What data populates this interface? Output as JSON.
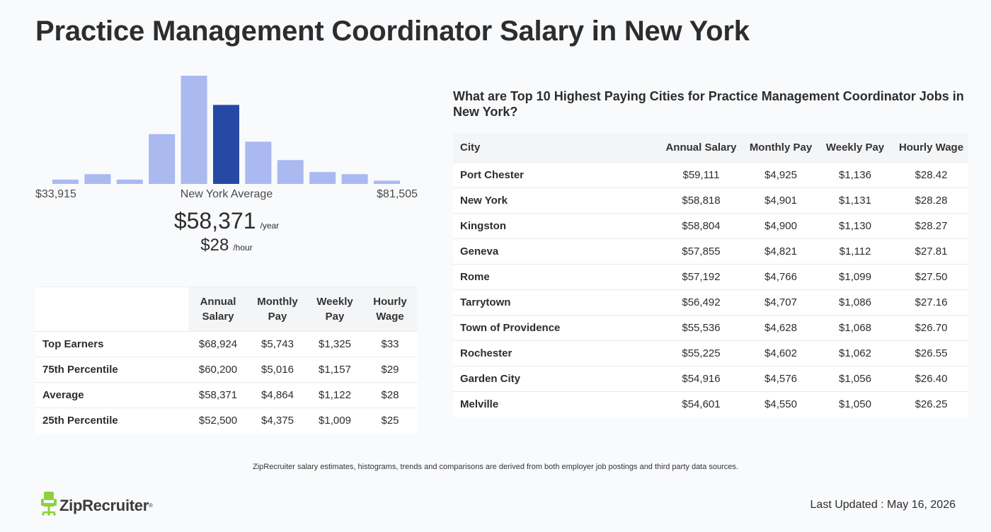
{
  "page": {
    "title": "Practice Management Coordinator Salary in New York",
    "disclaimer": "ZipRecruiter salary estimates, histograms, trends and comparisons are derived from both employer job postings and third party data sources.",
    "logo_text": "ZipRecruiter",
    "last_updated": "Last Updated : May 16, 2026"
  },
  "colors": {
    "bar": "#aab9f0",
    "bar_highlight": "#2649a5",
    "text": "#2d2d2d"
  },
  "summary": {
    "min_label": "$33,915",
    "mid_label": "New York Average",
    "max_label": "$81,505",
    "annual": "$58,371",
    "annual_unit": "/year",
    "hourly": "$28",
    "hourly_unit": "/hour"
  },
  "chart_data": {
    "type": "bar",
    "title": "",
    "xlabel": "",
    "ylabel": "",
    "x_range_labels": [
      "$33,915",
      "$81,505"
    ],
    "values": [
      4,
      9,
      4,
      46,
      100,
      73,
      39,
      22,
      11,
      9,
      3
    ],
    "highlight_index": 5,
    "ylim": [
      0,
      100
    ],
    "grid": false
  },
  "percentile_table": {
    "headers": [
      "",
      "Annual Salary",
      "Monthly Pay",
      "Weekly Pay",
      "Hourly Wage"
    ],
    "rows": [
      {
        "label": "Top Earners",
        "annual": "$68,924",
        "monthly": "$5,743",
        "weekly": "$1,325",
        "hourly": "$33"
      },
      {
        "label": "75th Percentile",
        "annual": "$60,200",
        "monthly": "$5,016",
        "weekly": "$1,157",
        "hourly": "$29"
      },
      {
        "label": "Average",
        "annual": "$58,371",
        "monthly": "$4,864",
        "weekly": "$1,122",
        "hourly": "$28"
      },
      {
        "label": "25th Percentile",
        "annual": "$52,500",
        "monthly": "$4,375",
        "weekly": "$1,009",
        "hourly": "$25"
      }
    ]
  },
  "cities": {
    "title": "What are Top 10 Highest Paying Cities for Practice Management Coordinator Jobs in New York?",
    "headers": [
      "City",
      "Annual Salary",
      "Monthly Pay",
      "Weekly Pay",
      "Hourly Wage"
    ],
    "rows": [
      {
        "city": "Port Chester",
        "annual": "$59,111",
        "monthly": "$4,925",
        "weekly": "$1,136",
        "hourly": "$28.42"
      },
      {
        "city": "New York",
        "annual": "$58,818",
        "monthly": "$4,901",
        "weekly": "$1,131",
        "hourly": "$28.28"
      },
      {
        "city": "Kingston",
        "annual": "$58,804",
        "monthly": "$4,900",
        "weekly": "$1,130",
        "hourly": "$28.27"
      },
      {
        "city": "Geneva",
        "annual": "$57,855",
        "monthly": "$4,821",
        "weekly": "$1,112",
        "hourly": "$27.81"
      },
      {
        "city": "Rome",
        "annual": "$57,192",
        "monthly": "$4,766",
        "weekly": "$1,099",
        "hourly": "$27.50"
      },
      {
        "city": "Tarrytown",
        "annual": "$56,492",
        "monthly": "$4,707",
        "weekly": "$1,086",
        "hourly": "$27.16"
      },
      {
        "city": "Town of Providence",
        "annual": "$55,536",
        "monthly": "$4,628",
        "weekly": "$1,068",
        "hourly": "$26.70"
      },
      {
        "city": "Rochester",
        "annual": "$55,225",
        "monthly": "$4,602",
        "weekly": "$1,062",
        "hourly": "$26.55"
      },
      {
        "city": "Garden City",
        "annual": "$54,916",
        "monthly": "$4,576",
        "weekly": "$1,056",
        "hourly": "$26.40"
      },
      {
        "city": "Melville",
        "annual": "$54,601",
        "monthly": "$4,550",
        "weekly": "$1,050",
        "hourly": "$26.25"
      }
    ]
  }
}
